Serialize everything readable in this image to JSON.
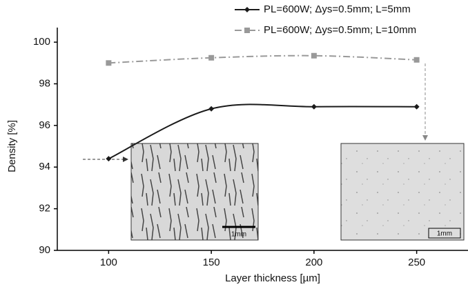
{
  "chart_data": {
    "type": "line",
    "x_label": "Layer thickness [µm]",
    "y_label": "Density [%]",
    "x": [
      100,
      150,
      200,
      250
    ],
    "series": [
      {
        "name": "PL=600W; Δys=0.5mm; L=5mm",
        "color": "#1a1a1a",
        "marker": "diamond",
        "dash": "solid",
        "values": [
          94.4,
          96.8,
          96.9,
          96.9
        ]
      },
      {
        "name": "PL=600W; Δys=0.5mm; L=10mm",
        "color": "#999999",
        "marker": "square",
        "dash": "dashdot",
        "values": [
          99.0,
          99.25,
          99.35,
          99.15
        ]
      }
    ],
    "xlim": [
      75,
      275
    ],
    "xticks": [
      100,
      150,
      200,
      250
    ],
    "ylim": [
      90,
      100.7
    ],
    "yticks": [
      90,
      92,
      94,
      96,
      98,
      100
    ],
    "legend": "top-right",
    "inset_scale_labels": [
      "1mm",
      "1mm"
    ]
  }
}
